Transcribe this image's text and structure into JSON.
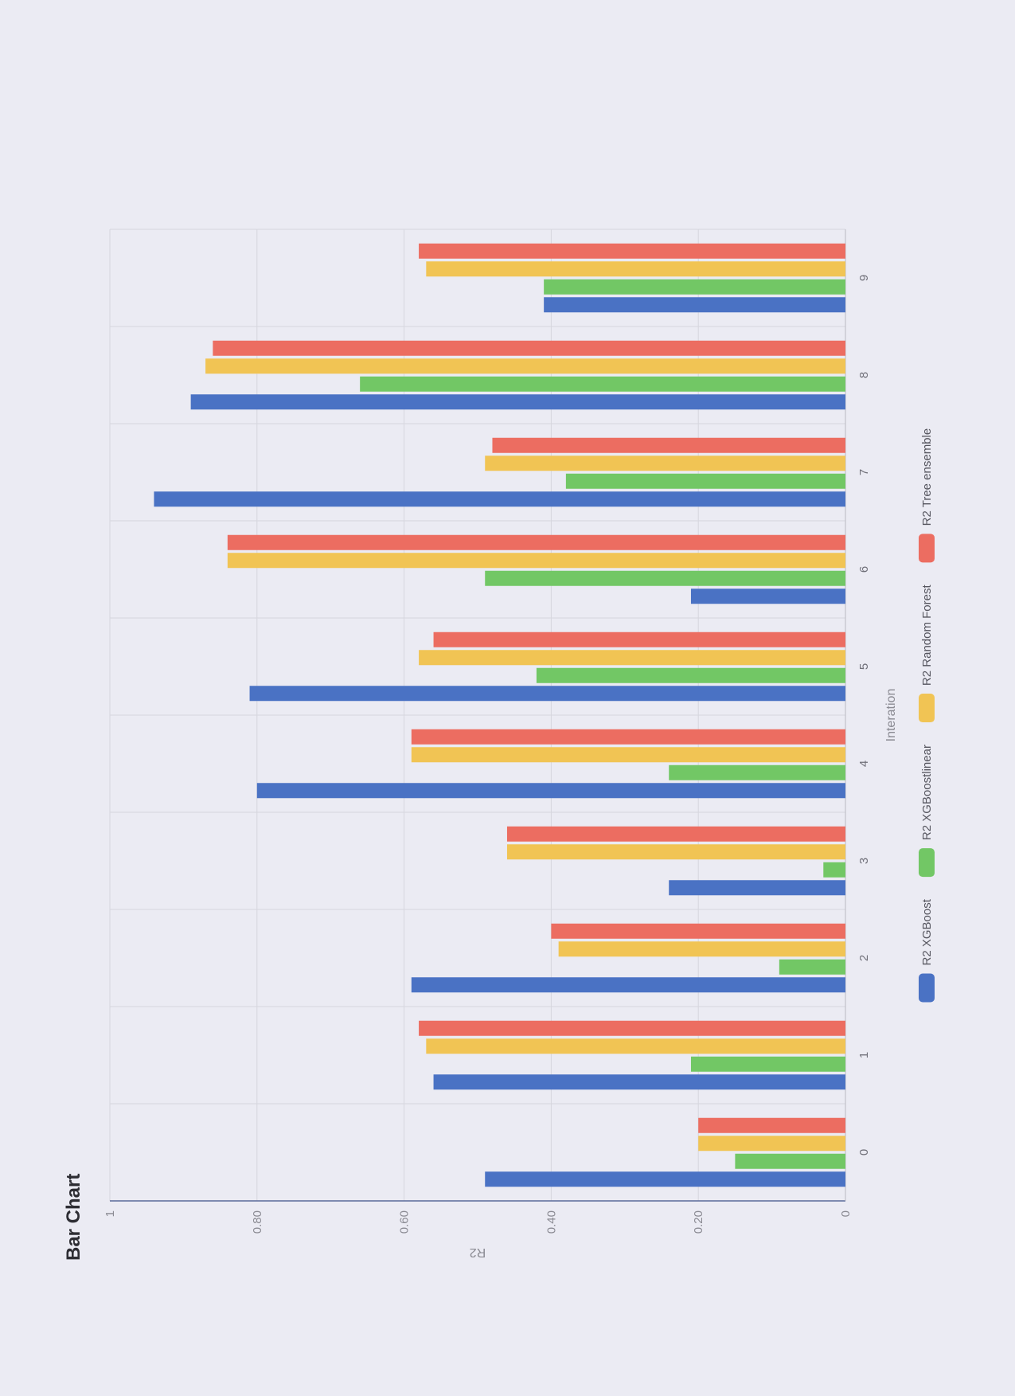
{
  "chart_data": {
    "type": "bar",
    "title": "Bar Chart",
    "xlabel": "Interation",
    "ylabel": "R2",
    "orientation": "vertical-bars-page-rotated-90",
    "categories": [
      "0",
      "1",
      "2",
      "3",
      "4",
      "5",
      "6",
      "7",
      "8",
      "9"
    ],
    "ylim": [
      0,
      1
    ],
    "y_ticks": [
      "0",
      "0.20",
      "0.40",
      "0.60",
      "0.80",
      "1"
    ],
    "grid": true,
    "legend_position": "bottom",
    "series": [
      {
        "name": "R2 XGBoost",
        "color": "#4a72c4",
        "values": [
          0.49,
          0.56,
          0.59,
          0.24,
          0.8,
          0.81,
          0.21,
          0.94,
          0.89,
          0.41
        ]
      },
      {
        "name": "R2 XGBoostlinear",
        "color": "#72c765",
        "values": [
          0.15,
          0.21,
          0.09,
          0.03,
          0.24,
          0.42,
          0.49,
          0.38,
          0.66,
          0.41
        ]
      },
      {
        "name": "R2 Random Forest",
        "color": "#f1c454",
        "values": [
          0.2,
          0.57,
          0.39,
          0.46,
          0.59,
          0.58,
          0.84,
          0.49,
          0.87,
          0.57
        ]
      },
      {
        "name": "R2 Tree ensemble",
        "color": "#ec6d61",
        "values": [
          0.2,
          0.58,
          0.4,
          0.46,
          0.59,
          0.56,
          0.84,
          0.48,
          0.86,
          0.58
        ]
      }
    ]
  }
}
